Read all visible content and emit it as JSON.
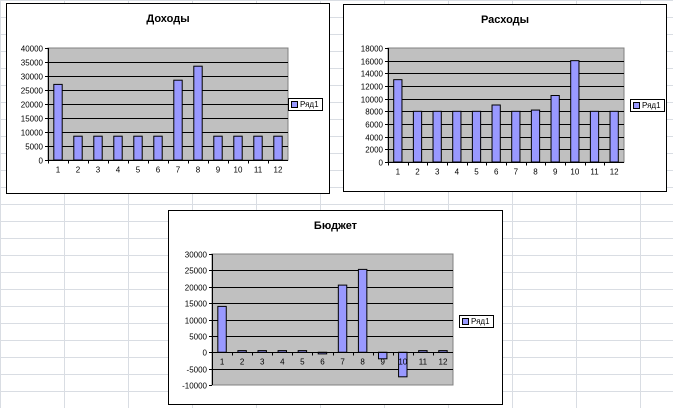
{
  "chart_data": [
    {
      "type": "bar",
      "title": "Доходы",
      "categories": [
        "1",
        "2",
        "3",
        "4",
        "5",
        "6",
        "7",
        "8",
        "9",
        "10",
        "11",
        "12"
      ],
      "series": [
        {
          "name": "Ряд1",
          "values": [
            27000,
            8500,
            8500,
            8500,
            8500,
            8500,
            28500,
            33500,
            8500,
            8500,
            8500,
            8500
          ]
        }
      ],
      "ylim": [
        0,
        40000
      ],
      "yticks": [
        "0",
        "5000",
        "10000",
        "15000",
        "20000",
        "25000",
        "30000",
        "35000",
        "40000"
      ],
      "grid": true,
      "legend": "right",
      "bar_color": "#9999ff",
      "plot_bg": "#c0c0c0"
    },
    {
      "type": "bar",
      "title": "Расходы",
      "categories": [
        "1",
        "2",
        "3",
        "4",
        "5",
        "6",
        "7",
        "8",
        "9",
        "10",
        "11",
        "12"
      ],
      "series": [
        {
          "name": "Ряд1",
          "values": [
            13000,
            8000,
            8000,
            8000,
            8000,
            9000,
            8000,
            8200,
            10500,
            16000,
            8000,
            8000
          ]
        }
      ],
      "ylim": [
        0,
        18000
      ],
      "yticks": [
        "0",
        "2000",
        "4000",
        "6000",
        "8000",
        "10000",
        "12000",
        "14000",
        "16000",
        "18000"
      ],
      "grid": true,
      "legend": "right",
      "bar_color": "#9999ff",
      "plot_bg": "#c0c0c0"
    },
    {
      "type": "bar",
      "title": "Бюджет",
      "categories": [
        "1",
        "2",
        "3",
        "4",
        "5",
        "6",
        "7",
        "8",
        "9",
        "10",
        "11",
        "12"
      ],
      "series": [
        {
          "name": "Ряд1",
          "values": [
            14000,
            500,
            500,
            500,
            500,
            -500,
            20500,
            25300,
            -2000,
            -7500,
            500,
            500
          ]
        }
      ],
      "ylim": [
        -10000,
        30000
      ],
      "yticks": [
        "-10000",
        "-5000",
        "0",
        "5000",
        "10000",
        "15000",
        "20000",
        "25000",
        "30000"
      ],
      "grid": true,
      "legend": "right",
      "bar_color": "#9999ff",
      "plot_bg": "#c0c0c0"
    }
  ]
}
